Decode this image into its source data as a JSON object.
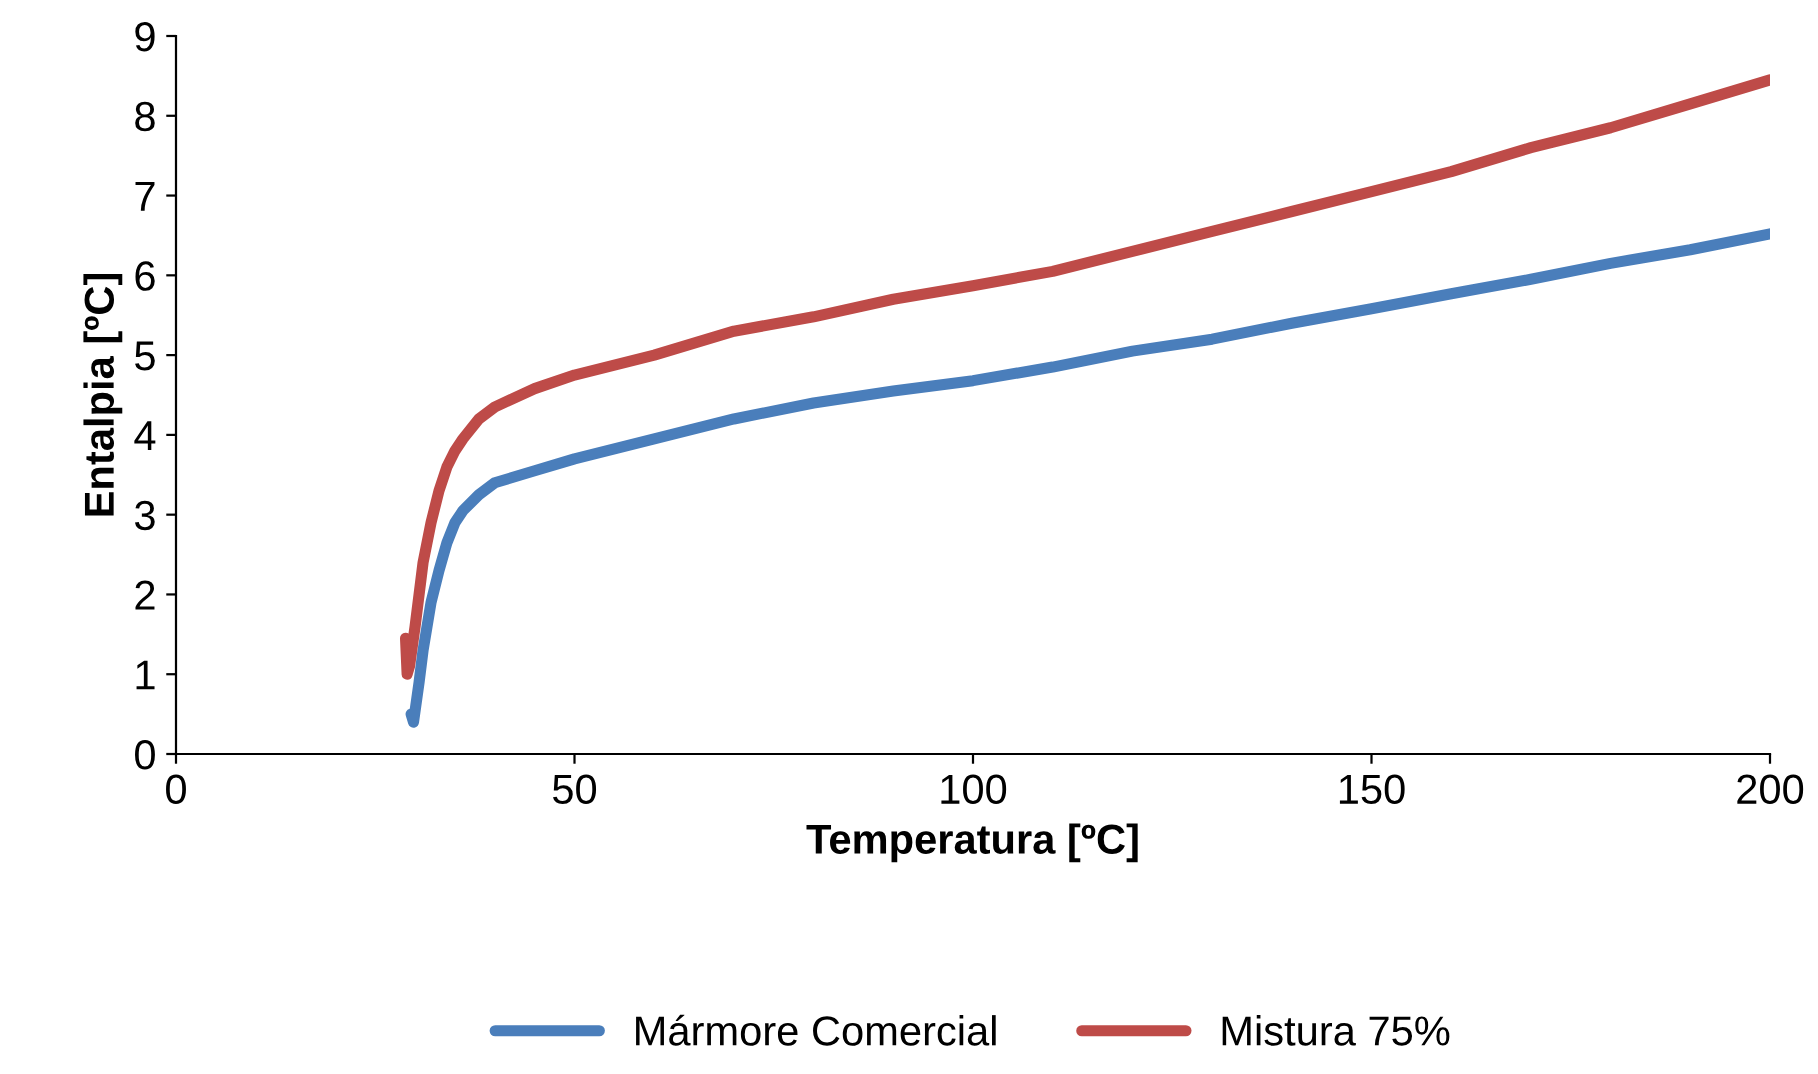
{
  "chart_data": {
    "type": "line",
    "xlabel": "Temperatura [ºC]",
    "ylabel": "Entalpia [ºC]",
    "xlim": [
      0,
      200
    ],
    "xticks": [
      0,
      50,
      100,
      150,
      200
    ],
    "ylim": [
      0,
      9
    ],
    "yticks": [
      0,
      1,
      2,
      3,
      4,
      5,
      6,
      7,
      8,
      9
    ],
    "grid": false,
    "legend": "bottom",
    "marker": "none",
    "line_style": "solid",
    "series": [
      {
        "name": "Mármore Comercial",
        "color": "#4a7ebb",
        "x": [
          29.5,
          29.8,
          30.5,
          31,
          32,
          33,
          34,
          35,
          36,
          38,
          40,
          45,
          50,
          60,
          70,
          80,
          90,
          100,
          110,
          120,
          130,
          140,
          150,
          160,
          170,
          180,
          190,
          200
        ],
        "values": [
          0.5,
          0.4,
          0.9,
          1.3,
          1.9,
          2.3,
          2.65,
          2.9,
          3.05,
          3.25,
          3.4,
          3.55,
          3.7,
          3.95,
          4.2,
          4.4,
          4.55,
          4.68,
          4.85,
          5.05,
          5.2,
          5.4,
          5.58,
          5.77,
          5.95,
          6.15,
          6.32,
          6.52
        ]
      },
      {
        "name": "Mistura 75%",
        "color": "#be4b48",
        "x": [
          28.8,
          29,
          29.3,
          30,
          31,
          32,
          33,
          34,
          35,
          36,
          38,
          40,
          45,
          50,
          60,
          70,
          80,
          90,
          100,
          110,
          120,
          130,
          140,
          150,
          160,
          170,
          180,
          190,
          200
        ],
        "values": [
          1.45,
          1.0,
          1.1,
          1.6,
          2.4,
          2.9,
          3.3,
          3.6,
          3.8,
          3.95,
          4.2,
          4.35,
          4.58,
          4.75,
          5.0,
          5.3,
          5.48,
          5.7,
          5.87,
          6.05,
          6.3,
          6.55,
          6.8,
          7.05,
          7.3,
          7.6,
          7.85,
          8.15,
          8.45
        ]
      }
    ]
  }
}
